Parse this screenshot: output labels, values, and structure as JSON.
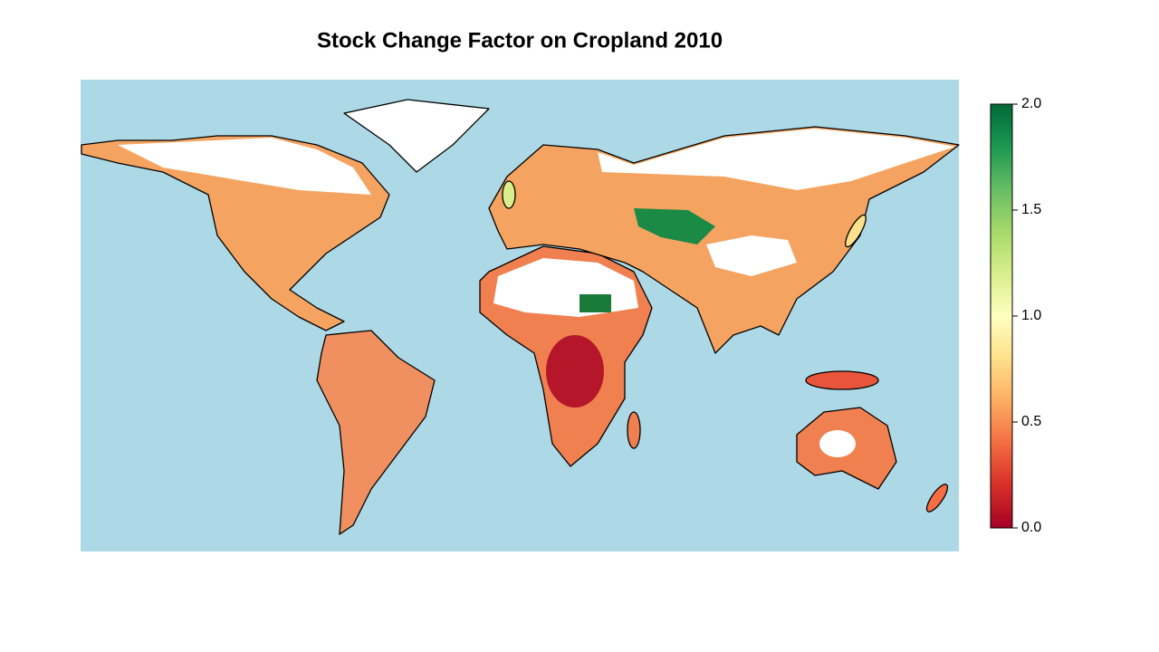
{
  "map": {
    "title": "Stock Change Factor on Cropland 2010",
    "colorbar": {
      "lim": [
        0,
        2
      ],
      "ticks": [
        {
          "value": 0,
          "label": "0.0"
        },
        {
          "value": 0.5,
          "label": "0.5"
        },
        {
          "value": 1,
          "label": "1.0"
        },
        {
          "value": 1.5,
          "label": "1.5"
        },
        {
          "value": 2,
          "label": "2.0"
        }
      ],
      "colors": [
        "#a50026",
        "#d73027",
        "#f46d43",
        "#fdae61",
        "#fee08b",
        "#ffffbf",
        "#d9ef8b",
        "#a6d96a",
        "#66bd63",
        "#1a9850",
        "#006837"
      ]
    }
  }
}
